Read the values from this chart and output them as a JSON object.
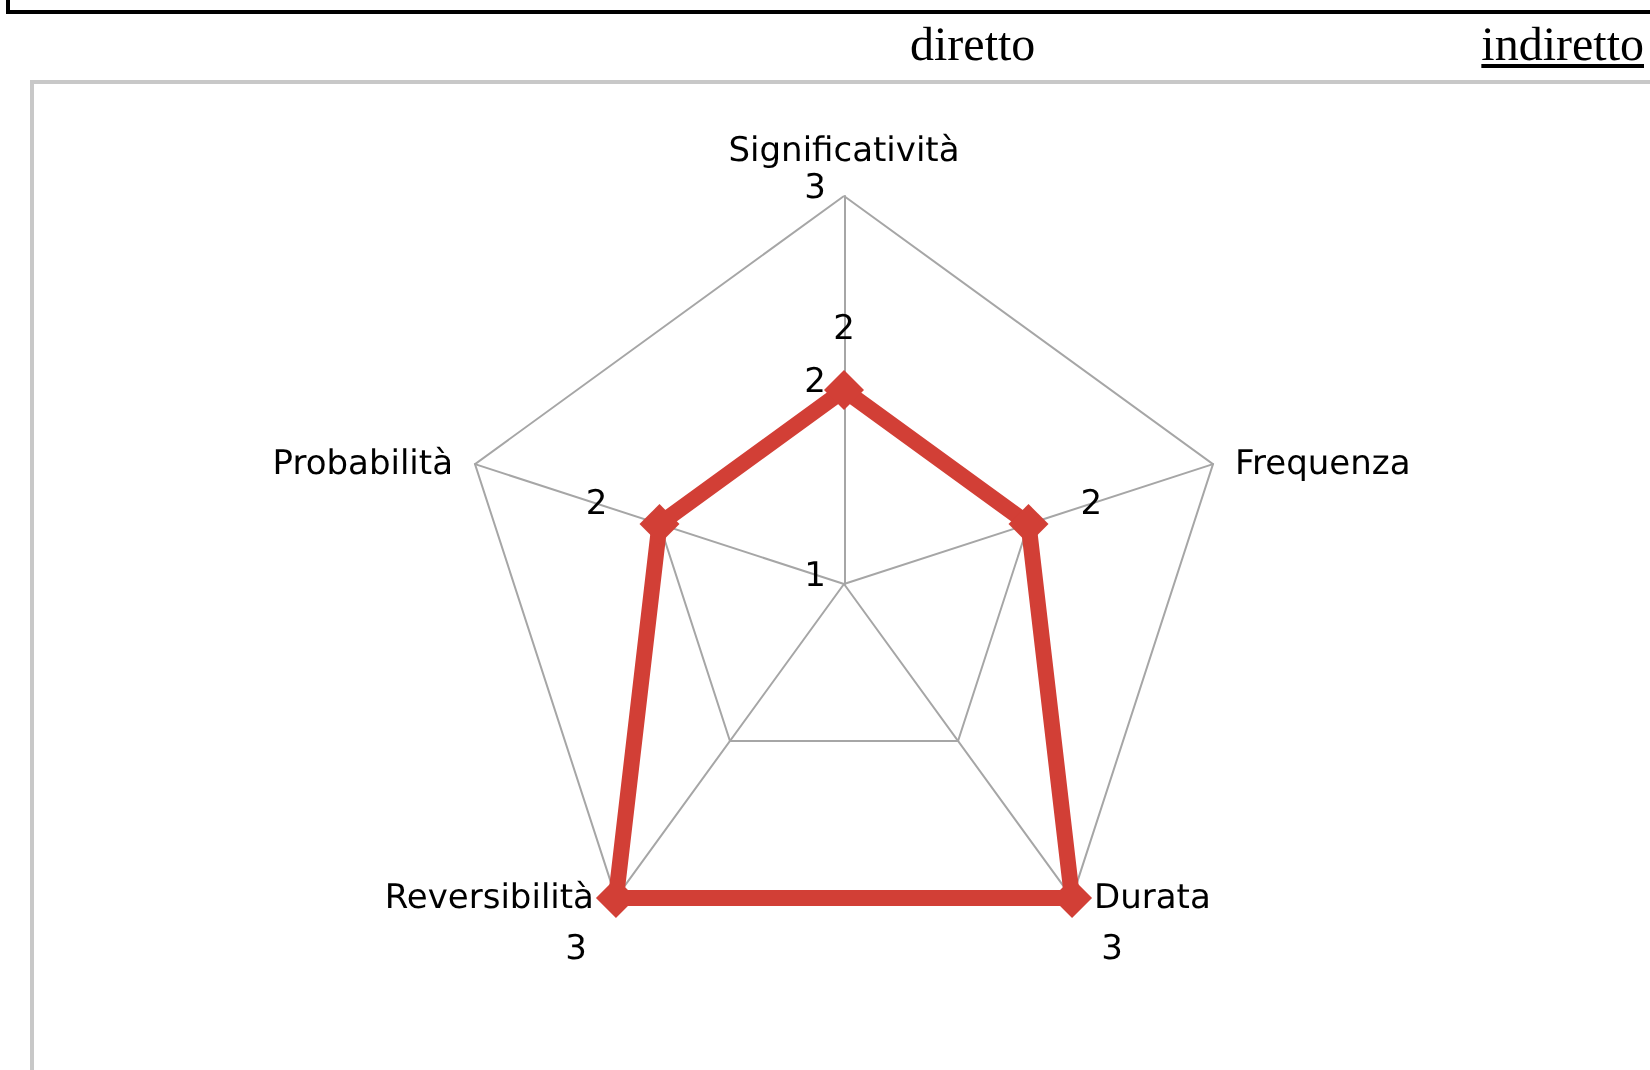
{
  "chart_data": {
    "type": "radar",
    "annotations": [
      "diretto",
      "indiretto"
    ],
    "categories": [
      "Significatività",
      "Frequenza",
      "Durata",
      "Reversibilità",
      "Probabilità"
    ],
    "series": [
      {
        "color": "#d23f36",
        "values": [
          2,
          2,
          3,
          3,
          2
        ]
      }
    ],
    "ylim": [
      1,
      3
    ],
    "yticks": [
      1,
      2,
      3
    ],
    "grid": true,
    "marker": "diamond",
    "line_style": "solid",
    "data_labels": true
  }
}
